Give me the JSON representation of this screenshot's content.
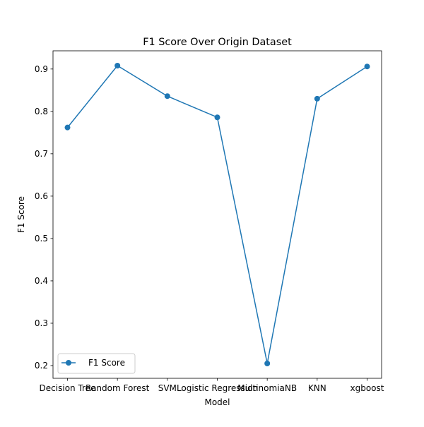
{
  "chart_data": {
    "type": "line",
    "title": "F1 Score Over Origin Dataset",
    "xlabel": "Model",
    "ylabel": "F1 Score",
    "categories": [
      "Decision Tree",
      "Random Forest",
      "SVM",
      "Logistic Regression",
      "MultinomiaNB",
      "KNN",
      "xgboost"
    ],
    "series": [
      {
        "name": "F1 Score",
        "values": [
          0.762,
          0.908,
          0.836,
          0.786,
          0.205,
          0.83,
          0.906
        ],
        "color": "#1f77b4",
        "marker": "circle"
      }
    ],
    "yticks": [
      "0.2",
      "0.3",
      "0.4",
      "0.5",
      "0.6",
      "0.7",
      "0.8",
      "0.9"
    ],
    "ylim": [
      0.17,
      0.943
    ],
    "grid": false,
    "legend_position": "lower-left"
  }
}
